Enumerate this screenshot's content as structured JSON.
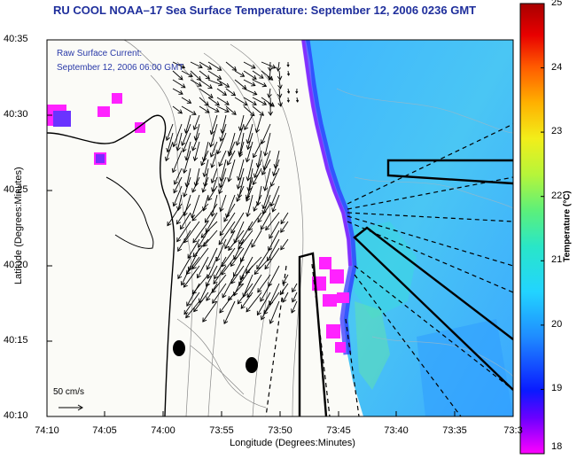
{
  "title": "RU COOL  NOAA–17  Sea Surface Temperature: September 12, 2006 0236 GMT",
  "current_label_line1": "Raw Surface Current:",
  "current_label_line2": "September 12, 2006 06:00 GMT",
  "scale_label": "50 cm/s",
  "colorbar": {
    "label": "Temperature (°C)",
    "min": 18,
    "max": 25,
    "ticks": [
      "25",
      "24",
      "23",
      "22",
      "21",
      "20",
      "19",
      "18"
    ],
    "colors": [
      "#ff00ff",
      "#6a00ff",
      "#0a1aff",
      "#1f8cff",
      "#22d4ff",
      "#29e6c8",
      "#5cf07a",
      "#b6f53a",
      "#f2ee1a",
      "#ffb000",
      "#ff5a00",
      "#e80000",
      "#a80000"
    ]
  },
  "axes": {
    "xlabel": "Longitude (Degrees:Minutes)",
    "ylabel": "Latitude (Degrees:Minutes)",
    "xticks": [
      "74:10",
      "74:05",
      "74:00",
      "73:55",
      "73:50",
      "73:45",
      "73:40",
      "73:35",
      "73:3"
    ],
    "yticks": [
      "40:35",
      "40:30",
      "40:25",
      "40:20",
      "40:15",
      "40:10"
    ]
  }
}
